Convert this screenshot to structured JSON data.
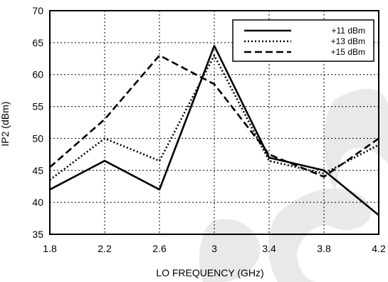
{
  "chart_data": {
    "type": "line",
    "xlabel": "LO FREQUENCY (GHz)",
    "ylabel": "IP2  (dBm)",
    "x": [
      1.8,
      2.2,
      2.6,
      3.0,
      3.4,
      3.8,
      4.2
    ],
    "xticks": [
      "1.8",
      "2.2",
      "2.6",
      "3",
      "3.4",
      "3.8",
      "4.2"
    ],
    "yticks": [
      "35",
      "40",
      "45",
      "50",
      "55",
      "60",
      "65",
      "70"
    ],
    "xlim": [
      1.8,
      4.2
    ],
    "ylim": [
      35,
      70
    ],
    "grid": true,
    "legend_position": "top-right",
    "series": [
      {
        "name": "+11 dBm",
        "style": "solid",
        "values": [
          42,
          46.5,
          42,
          64.5,
          47,
          45,
          38
        ]
      },
      {
        "name": "+13 dBm",
        "style": "dotted",
        "values": [
          43.5,
          50,
          46.5,
          63,
          46.5,
          44.5,
          49
        ]
      },
      {
        "name": "+15 dBm",
        "style": "dashed",
        "values": [
          45.5,
          53,
          63,
          58.5,
          47.5,
          44,
          50
        ]
      }
    ]
  }
}
